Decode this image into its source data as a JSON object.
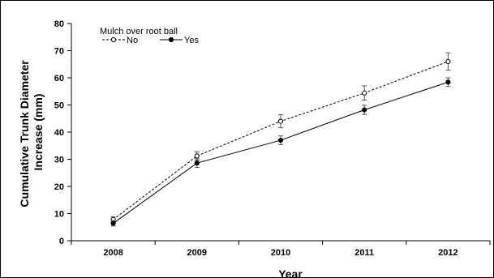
{
  "chart_data": {
    "type": "line",
    "xlabel": "Year",
    "ylabel_lines": [
      "Cumulative Trunk Diameter",
      "Increase (mm)"
    ],
    "categories": [
      "2008",
      "2009",
      "2010",
      "2011",
      "2012"
    ],
    "ylim": [
      0,
      80
    ],
    "yticks": [
      0,
      10,
      20,
      30,
      40,
      50,
      60,
      70,
      80
    ],
    "grid": false,
    "legend": {
      "title": "Mulch over root ball",
      "position": "top-left"
    },
    "series": [
      {
        "name": "No",
        "style": "dashed",
        "marker": "open-circle",
        "values": [
          7.8,
          31.2,
          44.0,
          54.4,
          66.0
        ],
        "errors": [
          1.0,
          1.5,
          2.4,
          2.6,
          3.2
        ]
      },
      {
        "name": "Yes",
        "style": "solid",
        "marker": "filled-circle",
        "values": [
          6.4,
          28.6,
          37.0,
          48.2,
          58.4
        ],
        "errors": [
          1.0,
          1.6,
          1.6,
          1.7,
          1.6
        ]
      }
    ]
  },
  "colors": {
    "line": "#000000",
    "background": "#ffffff"
  }
}
